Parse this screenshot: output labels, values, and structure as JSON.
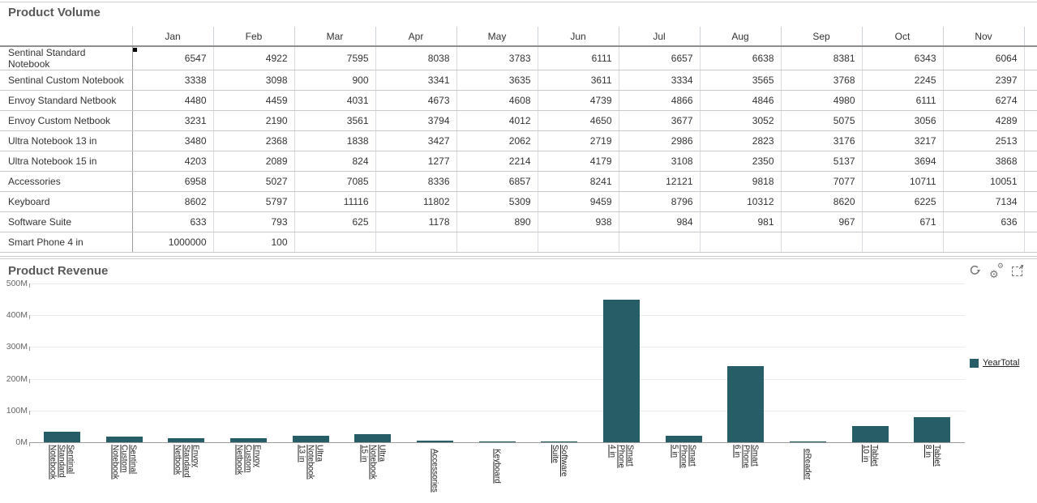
{
  "volume_panel": {
    "title": "Product Volume",
    "months": [
      "Jan",
      "Feb",
      "Mar",
      "Apr",
      "May",
      "Jun",
      "Jul",
      "Aug",
      "Sep",
      "Oct",
      "Nov"
    ],
    "rows": [
      {
        "label": "Sentinal Standard Notebook",
        "values": [
          6547,
          4922,
          7595,
          8038,
          3783,
          6111,
          6657,
          6638,
          8381,
          6343,
          6064
        ],
        "selected": true
      },
      {
        "label": "Sentinal Custom Notebook",
        "values": [
          3338,
          3098,
          900,
          3341,
          3635,
          3611,
          3334,
          3565,
          3768,
          2245,
          2397
        ]
      },
      {
        "label": "Envoy Standard Netbook",
        "values": [
          4480,
          4459,
          4031,
          4673,
          4608,
          4739,
          4866,
          4846,
          4980,
          6111,
          6274
        ]
      },
      {
        "label": "Envoy Custom Netbook",
        "values": [
          3231,
          2190,
          3561,
          3794,
          4012,
          4650,
          3677,
          3052,
          5075,
          3056,
          4289
        ]
      },
      {
        "label": "Ultra Notebook 13 in",
        "values": [
          3480,
          2368,
          1838,
          3427,
          2062,
          2719,
          2986,
          2823,
          3176,
          3217,
          2513
        ]
      },
      {
        "label": "Ultra Notebook 15 in",
        "values": [
          4203,
          2089,
          824,
          1277,
          2214,
          4179,
          3108,
          2350,
          5137,
          3694,
          3868
        ]
      },
      {
        "label": "Accessories",
        "values": [
          6958,
          5027,
          7085,
          8336,
          6857,
          8241,
          12121,
          9818,
          7077,
          10711,
          10051
        ]
      },
      {
        "label": "Keyboard",
        "values": [
          8602,
          5797,
          11116,
          11802,
          5309,
          9459,
          8796,
          10312,
          8620,
          6225,
          7134
        ]
      },
      {
        "label": "Software Suite",
        "values": [
          633,
          793,
          625,
          1178,
          890,
          938,
          984,
          981,
          967,
          671,
          636
        ]
      },
      {
        "label": "Smart Phone 4 in",
        "values": [
          1000000,
          100,
          null,
          null,
          null,
          null,
          null,
          null,
          null,
          null,
          null
        ]
      }
    ]
  },
  "revenue_panel": {
    "title": "Product Revenue",
    "toolbar": {
      "icons": [
        "refresh",
        "settings",
        "maximize"
      ]
    },
    "legend": {
      "label": "YearTotal",
      "color": "#265d66"
    }
  },
  "chart_data": {
    "type": "bar",
    "title": "Product Revenue",
    "xlabel": "",
    "ylabel": "",
    "ylim_millions": [
      0,
      500
    ],
    "ytick_labels": [
      "0M",
      "100M",
      "200M",
      "300M",
      "400M",
      "500M"
    ],
    "grid": true,
    "legend_position": "right",
    "bar_color": "#265d66",
    "categories": [
      "Sentinal Standard Notebook",
      "Sentinal Custom Notebook",
      "Envoy Standard Netbook",
      "Envoy Custom Netbook",
      "Ultra Notebook 13 in",
      "Ultra Notebook 15 in",
      "Accessories",
      "Keyboard",
      "Software Suite",
      "Smart Phone 4 in",
      "Smart Phone 5 in",
      "Smart Phone 6 in",
      "eReader",
      "Tablet 10 in",
      "Tablet 8 in"
    ],
    "category_lines": [
      [
        "Sentinal",
        "Standard",
        "Notebook"
      ],
      [
        "Sentinal",
        "Custom",
        "Notebook"
      ],
      [
        "Envoy",
        "Standard",
        "Netbook"
      ],
      [
        "Envoy",
        "Custom",
        "Netbook"
      ],
      [
        "Ultra",
        "Notebook",
        "13 in"
      ],
      [
        "Ultra",
        "Notebook",
        "15 in"
      ],
      [
        "Accessories"
      ],
      [
        "Keyboard"
      ],
      [
        "Software",
        "Suite"
      ],
      [
        "Smart",
        "Phone",
        "4 in"
      ],
      [
        "Smart",
        "Phone",
        "5 in"
      ],
      [
        "Smart",
        "Phone",
        "6 in"
      ],
      [
        "eReader"
      ],
      [
        "Tablet",
        "10 in"
      ],
      [
        "Tablet",
        "8 in"
      ]
    ],
    "series": [
      {
        "name": "YearTotal",
        "values_millions": [
          33,
          18,
          14,
          13,
          21,
          25,
          4,
          1.5,
          2.5,
          448,
          20,
          240,
          1,
          52,
          80
        ]
      }
    ]
  }
}
